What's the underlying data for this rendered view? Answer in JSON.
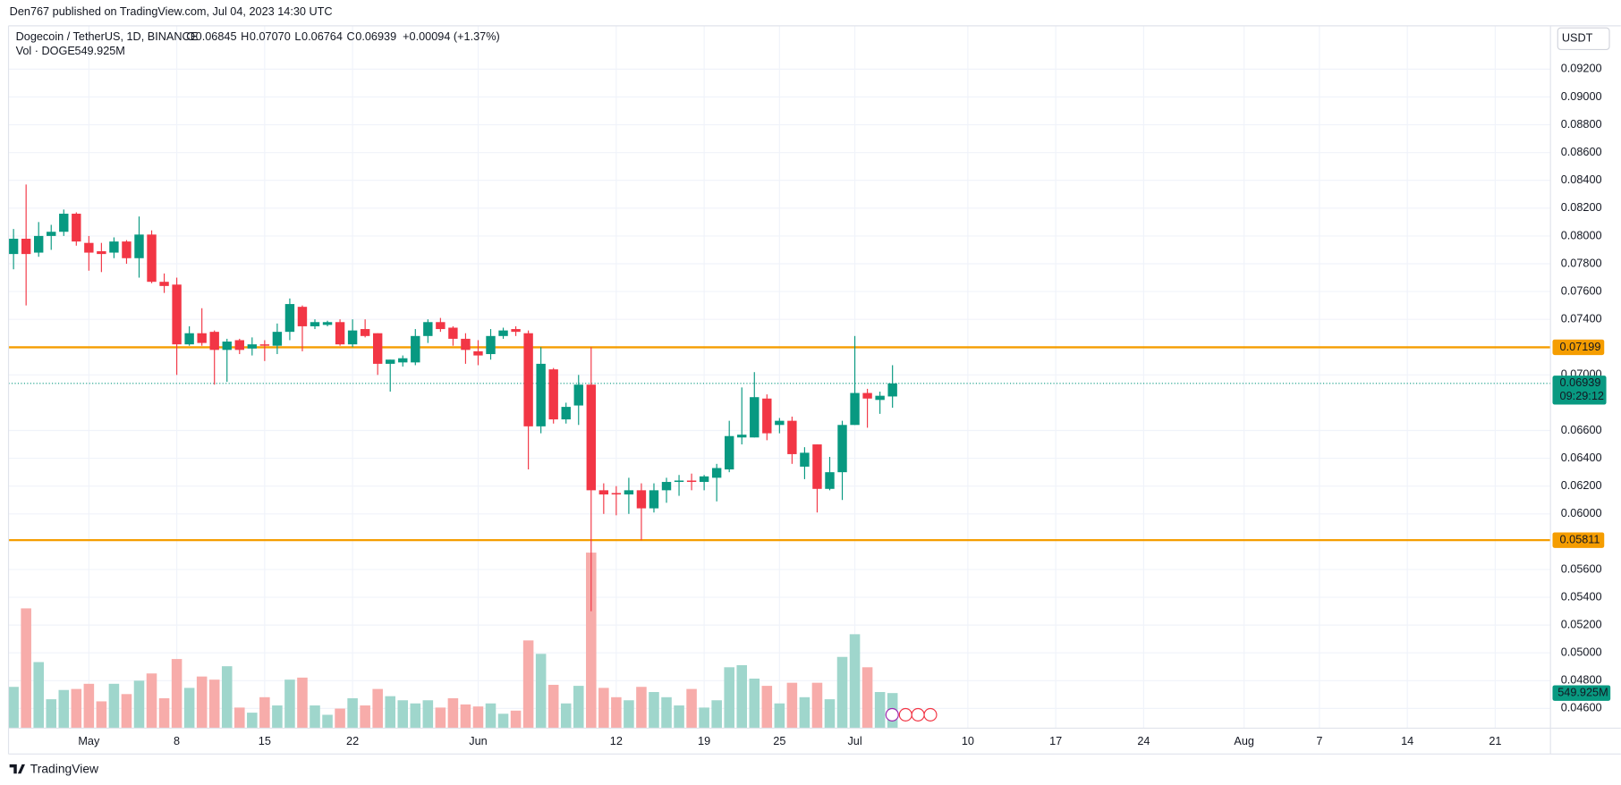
{
  "header": {
    "published": "Den767 published on TradingView.com, Jul 04, 2023 14:30 UTC",
    "currency": "USDT",
    "brand": "TradingView"
  },
  "chart_data": {
    "type": "candlestick",
    "symbol": "Dogecoin / TetherUS, 1D, BINANCE",
    "ohlc_legend": [
      {
        "label": "O",
        "value": "0.06845"
      },
      {
        "label": "H",
        "value": "0.07070"
      },
      {
        "label": "L",
        "value": "0.06764"
      },
      {
        "label": "C",
        "value": "0.06939"
      }
    ],
    "change": "+0.00094 (+1.37%)",
    "volume_title": "Vol · DOGE",
    "volume_value_label": "549.925M",
    "countdown": "09:29:12",
    "up_color": "#089981",
    "down_color": "#f23645",
    "volume_up_color": "#9fd6cc",
    "volume_down_color": "#f7acaa",
    "open": [
      0.0787,
      0.0798,
      0.0788,
      0.08,
      0.0803,
      0.0816,
      0.0795,
      0.0789,
      0.0788,
      0.0796,
      0.0784,
      0.0801,
      0.0767,
      0.0765,
      0.0722,
      0.073,
      0.0731,
      0.0718,
      0.0725,
      0.0719,
      0.0722,
      0.0721,
      0.0731,
      0.0749,
      0.0735,
      0.0736,
      0.0738,
      0.0722,
      0.0733,
      0.073,
      0.0708,
      0.0709,
      0.0709,
      0.0728,
      0.0738,
      0.0734,
      0.0726,
      0.0717,
      0.0715,
      0.0728,
      0.0733,
      0.073,
      0.0663,
      0.0704,
      0.0668,
      0.0678,
      0.0693,
      0.0617,
      0.0615,
      0.0614,
      0.0617,
      0.0604,
      0.0617,
      0.0623,
      0.0624,
      0.0623,
      0.0626,
      0.0632,
      0.0655,
      0.0655,
      0.0683,
      0.0664,
      0.0667,
      0.0634,
      0.065,
      0.0618,
      0.063,
      0.0664,
      0.0687,
      0.0682,
      0.06845
    ],
    "high": [
      0.0805,
      0.0837,
      0.081,
      0.0808,
      0.0819,
      0.0817,
      0.08,
      0.0795,
      0.0799,
      0.0797,
      0.0814,
      0.0804,
      0.0773,
      0.077,
      0.0735,
      0.0748,
      0.0732,
      0.0726,
      0.0726,
      0.0727,
      0.0725,
      0.0737,
      0.0755,
      0.075,
      0.074,
      0.0739,
      0.074,
      0.074,
      0.074,
      0.073,
      0.0711,
      0.0714,
      0.0733,
      0.074,
      0.0741,
      0.0735,
      0.073,
      0.0725,
      0.0733,
      0.0734,
      0.0735,
      0.0732,
      0.072,
      0.0705,
      0.068,
      0.07,
      0.072,
      0.0622,
      0.062,
      0.0626,
      0.0622,
      0.0622,
      0.0626,
      0.0628,
      0.0629,
      0.0628,
      0.0636,
      0.0667,
      0.0691,
      0.0702,
      0.0686,
      0.0669,
      0.067,
      0.0648,
      0.065,
      0.0641,
      0.0667,
      0.0728,
      0.069,
      0.0688,
      0.0707
    ],
    "low": [
      0.0776,
      0.075,
      0.0785,
      0.079,
      0.08,
      0.0793,
      0.0775,
      0.0774,
      0.0784,
      0.078,
      0.077,
      0.0766,
      0.0759,
      0.07,
      0.0721,
      0.0721,
      0.0693,
      0.0695,
      0.0715,
      0.0714,
      0.071,
      0.0715,
      0.0725,
      0.0717,
      0.0733,
      0.0735,
      0.0721,
      0.072,
      0.0727,
      0.07,
      0.0688,
      0.0706,
      0.0707,
      0.0723,
      0.0731,
      0.0721,
      0.0708,
      0.0707,
      0.0711,
      0.0726,
      0.0728,
      0.0632,
      0.0658,
      0.0665,
      0.0665,
      0.0664,
      0.053,
      0.06,
      0.0599,
      0.06,
      0.0581,
      0.0601,
      0.0608,
      0.0613,
      0.0617,
      0.0617,
      0.0609,
      0.063,
      0.065,
      0.0655,
      0.0653,
      0.0658,
      0.0636,
      0.0625,
      0.0601,
      0.0617,
      0.061,
      0.0664,
      0.0662,
      0.0672,
      0.06764
    ],
    "close": [
      0.0798,
      0.0787,
      0.08,
      0.0803,
      0.0816,
      0.0796,
      0.0788,
      0.0787,
      0.0796,
      0.0784,
      0.0801,
      0.0767,
      0.0764,
      0.0722,
      0.073,
      0.0723,
      0.0718,
      0.0724,
      0.0718,
      0.0722,
      0.0721,
      0.0731,
      0.0751,
      0.0735,
      0.0738,
      0.0738,
      0.0722,
      0.0732,
      0.0728,
      0.0708,
      0.0711,
      0.0712,
      0.0728,
      0.0738,
      0.0733,
      0.0726,
      0.0718,
      0.0714,
      0.0728,
      0.0732,
      0.0731,
      0.0663,
      0.0708,
      0.0668,
      0.0677,
      0.0693,
      0.0617,
      0.0614,
      0.0614,
      0.0617,
      0.0604,
      0.0617,
      0.0623,
      0.0624,
      0.0623,
      0.0627,
      0.0633,
      0.0656,
      0.0657,
      0.0684,
      0.0658,
      0.0667,
      0.0643,
      0.0644,
      0.0618,
      0.063,
      0.0664,
      0.0687,
      0.0683,
      0.0685,
      0.06939
    ],
    "volume": [
      647,
      1876,
      1035,
      453,
      598,
      614,
      695,
      420,
      695,
      534,
      744,
      857,
      469,
      1083,
      631,
      809,
      760,
      970,
      323,
      243,
      485,
      356,
      760,
      792,
      356,
      210,
      307,
      469,
      356,
      614,
      501,
      437,
      388,
      437,
      323,
      469,
      372,
      340,
      388,
      226,
      275,
      1374,
      1164,
      679,
      388,
      663,
      2749,
      631,
      485,
      437,
      647,
      566,
      485,
      356,
      614,
      323,
      437,
      954,
      986,
      776,
      663,
      388,
      711,
      485,
      711,
      453,
      1116,
      1471,
      954,
      566,
      549.925
    ],
    "levels": [
      {
        "value": 0.07199,
        "color": "#f59d00"
      },
      {
        "value": 0.05811,
        "color": "#f59d00"
      }
    ],
    "xlim": [
      -0.4,
      122.4
    ],
    "xticks": [
      {
        "value": 6,
        "label": "May"
      },
      {
        "value": 13,
        "label": "8"
      },
      {
        "value": 20,
        "label": "15"
      },
      {
        "value": 27,
        "label": "22"
      },
      {
        "value": 37,
        "label": "Jun"
      },
      {
        "value": 48,
        "label": "12"
      },
      {
        "value": 55,
        "label": "19"
      },
      {
        "value": 61,
        "label": "25"
      },
      {
        "value": 67,
        "label": "Jul"
      },
      {
        "value": 76,
        "label": "10"
      },
      {
        "value": 83,
        "label": "17"
      },
      {
        "value": 90,
        "label": "24"
      },
      {
        "value": 98,
        "label": "Aug"
      },
      {
        "value": 104,
        "label": "7"
      },
      {
        "value": 111,
        "label": "14"
      },
      {
        "value": 118,
        "label": "21"
      }
    ],
    "ylim": [
      0.04458,
      0.09512
    ],
    "yticks": [
      {
        "value": 0.092,
        "label": "0.09200"
      },
      {
        "value": 0.09,
        "label": "0.09000"
      },
      {
        "value": 0.088,
        "label": "0.08800"
      },
      {
        "value": 0.086,
        "label": "0.08600"
      },
      {
        "value": 0.084,
        "label": "0.08400"
      },
      {
        "value": 0.082,
        "label": "0.08200"
      },
      {
        "value": 0.08,
        "label": "0.08000"
      },
      {
        "value": 0.078,
        "label": "0.07800"
      },
      {
        "value": 0.076,
        "label": "0.07600"
      },
      {
        "value": 0.074,
        "label": "0.07400"
      },
      {
        "value": 0.07,
        "label": "0.07000"
      },
      {
        "value": 0.066,
        "label": "0.06600"
      },
      {
        "value": 0.064,
        "label": "0.06400"
      },
      {
        "value": 0.062,
        "label": "0.06200"
      },
      {
        "value": 0.06,
        "label": "0.06000"
      },
      {
        "value": 0.056,
        "label": "0.05600"
      },
      {
        "value": 0.054,
        "label": "0.05400"
      },
      {
        "value": 0.052,
        "label": "0.05200"
      },
      {
        "value": 0.05,
        "label": "0.05000"
      },
      {
        "value": 0.048,
        "label": "0.04800"
      },
      {
        "value": 0.046,
        "label": "0.04600"
      }
    ],
    "grid": true
  }
}
